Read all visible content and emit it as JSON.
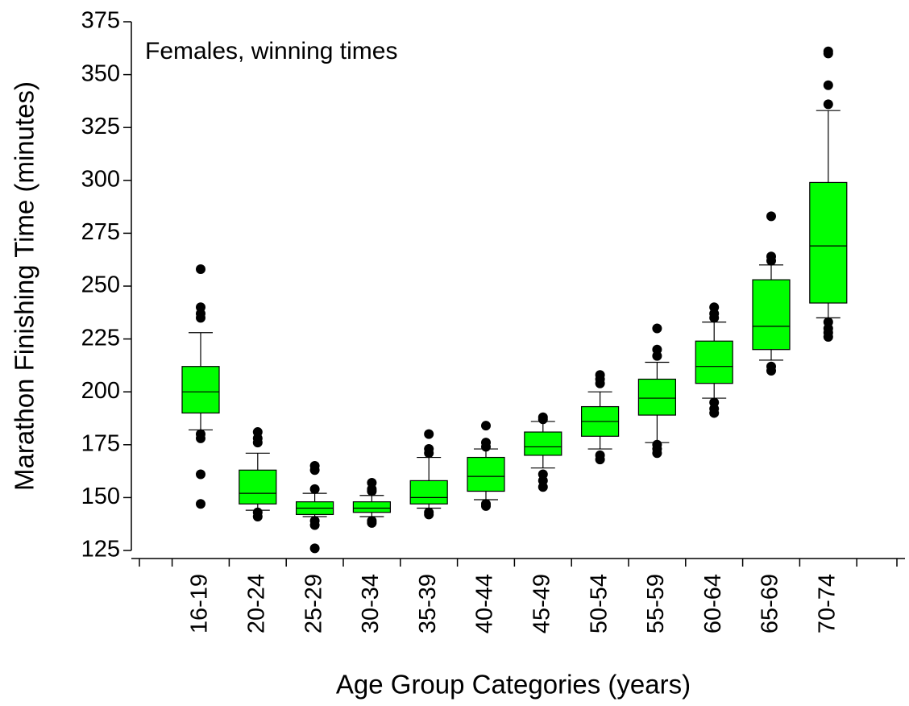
{
  "chart_data": {
    "type": "box",
    "annotation": "Females, winning times",
    "xlabel": "Age Group Categories (years)",
    "ylabel": "Marathon Finishing Time (minutes)",
    "color": "#00ff00",
    "categories": [
      "16-19",
      "20-24",
      "25-29",
      "30-34",
      "35-39",
      "40-44",
      "45-49",
      "50-54",
      "55-59",
      "60-64",
      "65-69",
      "70-74"
    ],
    "boxes": [
      {
        "low": 182,
        "q1": 190,
        "median": 200,
        "q3": 212,
        "high": 228,
        "outliers": [
          258,
          240,
          237,
          235,
          180,
          178,
          161,
          147
        ]
      },
      {
        "low": 144,
        "q1": 147,
        "median": 152,
        "q3": 163,
        "high": 171,
        "outliers": [
          181,
          178,
          176,
          143,
          141
        ]
      },
      {
        "low": 141,
        "q1": 142,
        "median": 145,
        "q3": 148,
        "high": 152,
        "outliers": [
          165,
          163,
          154,
          139,
          137,
          126
        ]
      },
      {
        "low": 141,
        "q1": 143,
        "median": 145,
        "q3": 148,
        "high": 151,
        "outliers": [
          157,
          154,
          153,
          139,
          138
        ]
      },
      {
        "low": 145,
        "q1": 147,
        "median": 150,
        "q3": 158,
        "high": 169,
        "outliers": [
          180,
          173,
          171,
          143,
          142
        ]
      },
      {
        "low": 149,
        "q1": 153,
        "median": 160,
        "q3": 169,
        "high": 173,
        "outliers": [
          184,
          176,
          174,
          147,
          146
        ]
      },
      {
        "low": 164,
        "q1": 170,
        "median": 174,
        "q3": 181,
        "high": 186,
        "outliers": [
          188,
          187,
          161,
          158,
          155
        ]
      },
      {
        "low": 173,
        "q1": 179,
        "median": 186,
        "q3": 193,
        "high": 200,
        "outliers": [
          208,
          206,
          204,
          170,
          168
        ]
      },
      {
        "low": 176,
        "q1": 189,
        "median": 197,
        "q3": 206,
        "high": 214,
        "outliers": [
          230,
          220,
          217,
          175,
          173,
          171
        ]
      },
      {
        "low": 197,
        "q1": 204,
        "median": 212,
        "q3": 224,
        "high": 233,
        "outliers": [
          240,
          237,
          235,
          195,
          192,
          190
        ]
      },
      {
        "low": 215,
        "q1": 220,
        "median": 231,
        "q3": 253,
        "high": 260,
        "outliers": [
          283,
          264,
          262,
          212,
          210
        ]
      },
      {
        "low": 235,
        "q1": 242,
        "median": 269,
        "q3": 299,
        "high": 333,
        "outliers": [
          361,
          360,
          345,
          336,
          233,
          230,
          228,
          226
        ]
      }
    ],
    "ylim": [
      125,
      375
    ],
    "yticks": [
      125,
      150,
      175,
      200,
      225,
      250,
      275,
      300,
      325,
      350,
      375
    ]
  }
}
